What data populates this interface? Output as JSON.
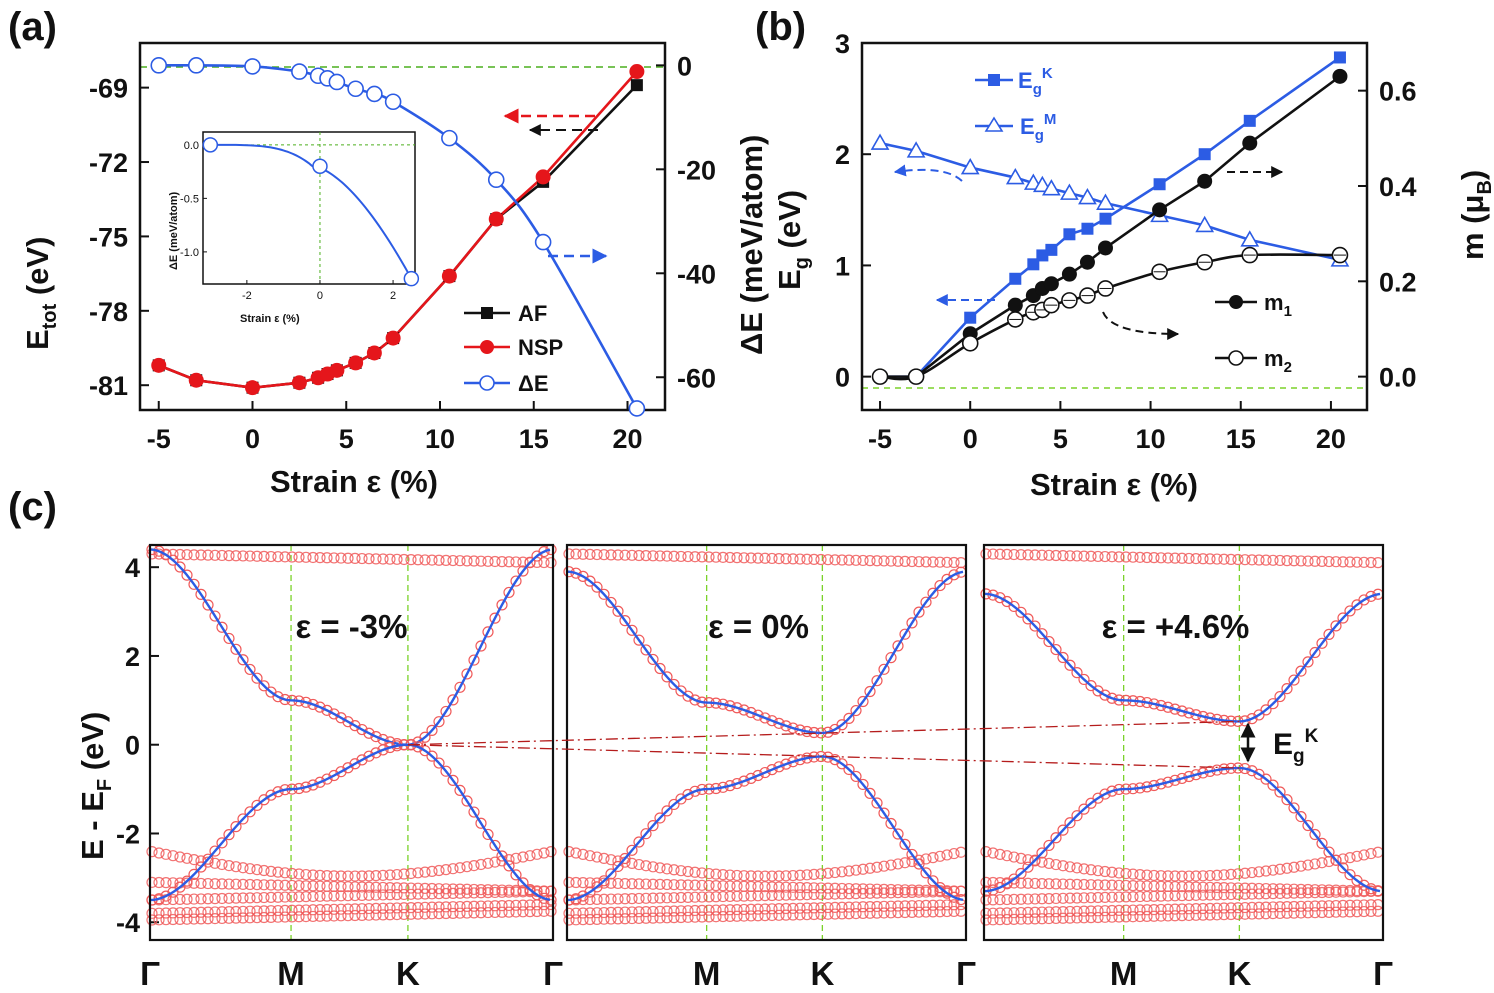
{
  "chart_data": [
    {
      "panel": "(a)",
      "type": "line",
      "xlabel": "Strain ε (%)",
      "ylabel_left": "E_tot (eV)",
      "ylabel_right": "ΔE (meV/atom)",
      "xlim": [
        -6,
        22
      ],
      "ylim_left": [
        -82,
        -67.2
      ],
      "ylim_right": [
        -66.3,
        4.3
      ],
      "xticks": [
        -5,
        0,
        5,
        10,
        15,
        20
      ],
      "yticks_left": [
        -81,
        -78,
        -75,
        -72,
        -69
      ],
      "yticks_right": [
        -60,
        -40,
        -20,
        0
      ],
      "series": [
        {
          "name": "AF",
          "axis": "left",
          "color": "#111111",
          "marker": "square",
          "x": [
            -5,
            -3,
            0,
            2.5,
            3.5,
            4,
            4.5,
            5.5,
            6.5,
            7.5,
            10.5,
            13,
            15.5,
            20.5
          ],
          "y": [
            -80.2,
            -80.8,
            -81.1,
            -80.9,
            -80.7,
            -80.55,
            -80.4,
            -80.1,
            -79.7,
            -79.1,
            -76.6,
            -74.3,
            -72.8,
            -68.9
          ]
        },
        {
          "name": "NSP",
          "axis": "left",
          "color": "#e5161b",
          "marker": "circle",
          "x": [
            -5,
            -3,
            0,
            2.5,
            3.5,
            4,
            4.5,
            5.5,
            6.5,
            7.5,
            10.5,
            13,
            15.5,
            20.5
          ],
          "y": [
            -80.2,
            -80.8,
            -81.1,
            -80.9,
            -80.7,
            -80.55,
            -80.4,
            -80.1,
            -79.7,
            -79.1,
            -76.6,
            -74.3,
            -72.6,
            -68.35
          ]
        },
        {
          "name": "ΔE",
          "axis": "right",
          "color": "#2c5ce4",
          "marker": "open-circle",
          "x": [
            -5,
            -3,
            0,
            2.5,
            3.5,
            4,
            4.5,
            5.5,
            6.5,
            7.5,
            10.5,
            13,
            15.5,
            20.5
          ],
          "y": [
            0,
            0,
            -0.2,
            -1.2,
            -2,
            -2.5,
            -3.2,
            -4.5,
            -5.5,
            -7,
            -14,
            -22,
            -34,
            -66
          ]
        }
      ],
      "legend": [
        "AF",
        "NSP",
        "ΔE"
      ],
      "inset": {
        "xlabel": "Strain ε (%)",
        "ylabel": "ΔE (meV/atom)",
        "xlim": [
          -3.2,
          2.6
        ],
        "ylim": [
          -1.3,
          0.12
        ],
        "xticks": [
          -2,
          0,
          2
        ],
        "yticks": [
          "0.0",
          "-0.5",
          "-1.0"
        ],
        "x": [
          -3,
          0,
          2.5
        ],
        "y": [
          0,
          -0.2,
          -1.25
        ]
      }
    },
    {
      "panel": "(b)",
      "type": "line",
      "xlabel": "Strain ε (%)",
      "ylabel_left": "E_g (eV)",
      "ylabel_right": "m (μ_B)",
      "xlim": [
        -6,
        22
      ],
      "ylim_left": [
        -0.3,
        3
      ],
      "ylim_right": [
        -0.07,
        0.7
      ],
      "xticks": [
        -5,
        0,
        5,
        10,
        15,
        20
      ],
      "yticks_left": [
        0,
        1,
        2,
        3
      ],
      "yticks_right": [
        "0.0",
        "0.2",
        "0.4",
        "0.6"
      ],
      "series": [
        {
          "name": "E_g^K",
          "axis": "left",
          "color": "#2c5ce4",
          "marker": "square",
          "x": [
            -5,
            -3,
            0,
            2.5,
            3.5,
            4,
            4.5,
            5.5,
            6.5,
            7.5,
            10.5,
            13,
            15.5,
            20.5
          ],
          "y": [
            0,
            0,
            0.53,
            0.88,
            1.01,
            1.09,
            1.14,
            1.28,
            1.33,
            1.42,
            1.73,
            2.0,
            2.3,
            2.87
          ]
        },
        {
          "name": "E_g^M",
          "axis": "left",
          "color": "#2c5ce4",
          "marker": "open-triangle",
          "x": [
            -5,
            -3,
            0,
            2.5,
            3.5,
            4,
            4.5,
            5.5,
            6.5,
            7.5,
            10.5,
            13,
            15.5,
            20.5
          ],
          "y": [
            2.1,
            2.03,
            1.88,
            1.79,
            1.74,
            1.72,
            1.69,
            1.65,
            1.61,
            1.56,
            1.45,
            1.36,
            1.23,
            1.05
          ]
        },
        {
          "name": "m_1",
          "axis": "right",
          "color": "#111111",
          "marker": "circle",
          "x": [
            -5,
            -3,
            0,
            2.5,
            3.5,
            4,
            4.5,
            5.5,
            6.5,
            7.5,
            10.5,
            13,
            15.5,
            20.5
          ],
          "y": [
            0,
            0,
            0.09,
            0.15,
            0.17,
            0.185,
            0.195,
            0.215,
            0.24,
            0.27,
            0.35,
            0.41,
            0.49,
            0.63
          ]
        },
        {
          "name": "m_2",
          "axis": "right",
          "color": "#111111",
          "marker": "open-circle",
          "x": [
            -5,
            -3,
            0,
            2.5,
            3.5,
            4,
            4.5,
            5.5,
            6.5,
            7.5,
            10.5,
            13,
            15.5,
            20.5
          ],
          "y": [
            0,
            0,
            0.07,
            0.12,
            0.135,
            0.14,
            0.15,
            0.16,
            0.17,
            0.185,
            0.22,
            0.24,
            0.255,
            0.255
          ]
        }
      ],
      "legend": [
        "E_g^K",
        "E_g^M",
        "m_1",
        "m_2"
      ]
    },
    {
      "panel": "(c)",
      "type": "line",
      "ylabel": "E - E_F (eV)",
      "ylim": [
        -4.4,
        4.5
      ],
      "yticks": [
        -4,
        -2,
        0,
        2,
        4
      ],
      "kpoints": [
        "Γ",
        "M",
        "K",
        "Γ"
      ],
      "subpanels": [
        {
          "label": "ε = -3%",
          "gap": 0.0,
          "vb_m": -1.0,
          "cb_m": 1.0,
          "cb_gamma": 4.4,
          "vb_gamma": -3.5
        },
        {
          "label": "ε = 0%",
          "gap": 0.53,
          "vb_m": -1.0,
          "cb_m": 0.95,
          "cb_gamma": 3.9,
          "vb_gamma": -3.5
        },
        {
          "label": "ε = +4.6%",
          "gap": 1.05,
          "vb_m": -1.0,
          "cb_m": 1.0,
          "cb_gamma": 3.4,
          "vb_gamma": -3.3
        }
      ],
      "annotation": "E_g^K"
    }
  ]
}
